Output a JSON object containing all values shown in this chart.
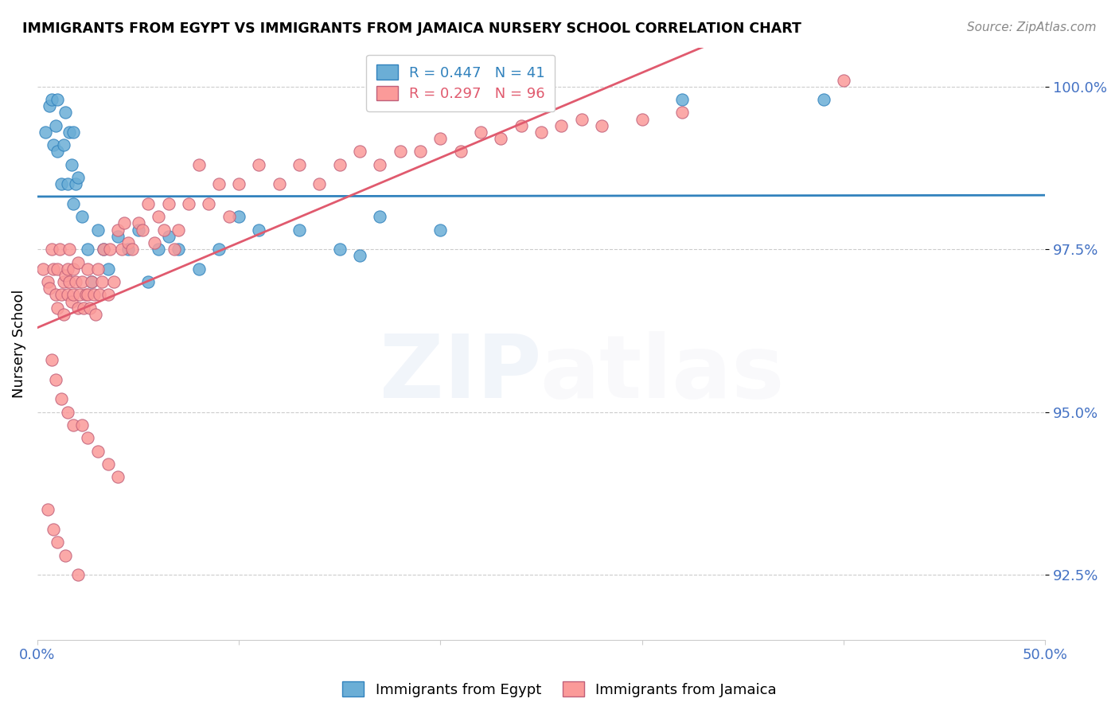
{
  "title": "IMMIGRANTS FROM EGYPT VS IMMIGRANTS FROM JAMAICA NURSERY SCHOOL CORRELATION CHART",
  "source": "Source: ZipAtlas.com",
  "ylabel": "Nursery School",
  "xlim": [
    0.0,
    0.5
  ],
  "ylim": [
    0.915,
    1.006
  ],
  "yticks": [
    0.925,
    0.95,
    0.975,
    1.0
  ],
  "ytick_labels": [
    "92.5%",
    "95.0%",
    "97.5%",
    "100.0%"
  ],
  "xtick_positions": [
    0.0,
    0.1,
    0.2,
    0.3,
    0.4,
    0.5
  ],
  "xtick_labels": [
    "0.0%",
    "",
    "",
    "",
    "",
    "50.0%"
  ],
  "legend_egypt": "R = 0.447   N = 41",
  "legend_jamaica": "R = 0.297   N = 96",
  "egypt_color": "#6baed6",
  "jamaica_color": "#fb9a99",
  "egypt_line_color": "#3182bd",
  "jamaica_line_color": "#e05a6e",
  "axis_color": "#4472C4",
  "egypt_x": [
    0.004,
    0.006,
    0.007,
    0.008,
    0.009,
    0.01,
    0.01,
    0.012,
    0.013,
    0.014,
    0.015,
    0.016,
    0.017,
    0.018,
    0.018,
    0.019,
    0.02,
    0.022,
    0.025,
    0.027,
    0.03,
    0.033,
    0.035,
    0.04,
    0.045,
    0.05,
    0.055,
    0.06,
    0.065,
    0.07,
    0.08,
    0.09,
    0.1,
    0.11,
    0.13,
    0.15,
    0.16,
    0.17,
    0.2,
    0.32,
    0.39
  ],
  "egypt_y": [
    0.993,
    0.997,
    0.998,
    0.991,
    0.994,
    0.99,
    0.998,
    0.985,
    0.991,
    0.996,
    0.985,
    0.993,
    0.988,
    0.982,
    0.993,
    0.985,
    0.986,
    0.98,
    0.975,
    0.97,
    0.978,
    0.975,
    0.972,
    0.977,
    0.975,
    0.978,
    0.97,
    0.975,
    0.977,
    0.975,
    0.972,
    0.975,
    0.98,
    0.978,
    0.978,
    0.975,
    0.974,
    0.98,
    0.978,
    0.998,
    0.998
  ],
  "jamaica_x": [
    0.003,
    0.005,
    0.006,
    0.007,
    0.008,
    0.009,
    0.01,
    0.01,
    0.011,
    0.012,
    0.013,
    0.013,
    0.014,
    0.015,
    0.015,
    0.016,
    0.016,
    0.017,
    0.018,
    0.018,
    0.019,
    0.02,
    0.02,
    0.021,
    0.022,
    0.023,
    0.024,
    0.025,
    0.025,
    0.026,
    0.027,
    0.028,
    0.029,
    0.03,
    0.031,
    0.032,
    0.033,
    0.035,
    0.036,
    0.038,
    0.04,
    0.042,
    0.043,
    0.045,
    0.047,
    0.05,
    0.052,
    0.055,
    0.058,
    0.06,
    0.063,
    0.065,
    0.068,
    0.07,
    0.075,
    0.08,
    0.085,
    0.09,
    0.095,
    0.1,
    0.11,
    0.12,
    0.13,
    0.14,
    0.15,
    0.16,
    0.17,
    0.18,
    0.19,
    0.2,
    0.21,
    0.22,
    0.23,
    0.24,
    0.25,
    0.26,
    0.27,
    0.28,
    0.3,
    0.32,
    0.007,
    0.009,
    0.012,
    0.015,
    0.018,
    0.022,
    0.025,
    0.03,
    0.035,
    0.04,
    0.005,
    0.008,
    0.01,
    0.014,
    0.02,
    0.4
  ],
  "jamaica_y": [
    0.972,
    0.97,
    0.969,
    0.975,
    0.972,
    0.968,
    0.972,
    0.966,
    0.975,
    0.968,
    0.97,
    0.965,
    0.971,
    0.972,
    0.968,
    0.97,
    0.975,
    0.967,
    0.972,
    0.968,
    0.97,
    0.966,
    0.973,
    0.968,
    0.97,
    0.966,
    0.968,
    0.972,
    0.968,
    0.966,
    0.97,
    0.968,
    0.965,
    0.972,
    0.968,
    0.97,
    0.975,
    0.968,
    0.975,
    0.97,
    0.978,
    0.975,
    0.979,
    0.976,
    0.975,
    0.979,
    0.978,
    0.982,
    0.976,
    0.98,
    0.978,
    0.982,
    0.975,
    0.978,
    0.982,
    0.988,
    0.982,
    0.985,
    0.98,
    0.985,
    0.988,
    0.985,
    0.988,
    0.985,
    0.988,
    0.99,
    0.988,
    0.99,
    0.99,
    0.992,
    0.99,
    0.993,
    0.992,
    0.994,
    0.993,
    0.994,
    0.995,
    0.994,
    0.995,
    0.996,
    0.958,
    0.955,
    0.952,
    0.95,
    0.948,
    0.948,
    0.946,
    0.944,
    0.942,
    0.94,
    0.935,
    0.932,
    0.93,
    0.928,
    0.925,
    1.001
  ]
}
